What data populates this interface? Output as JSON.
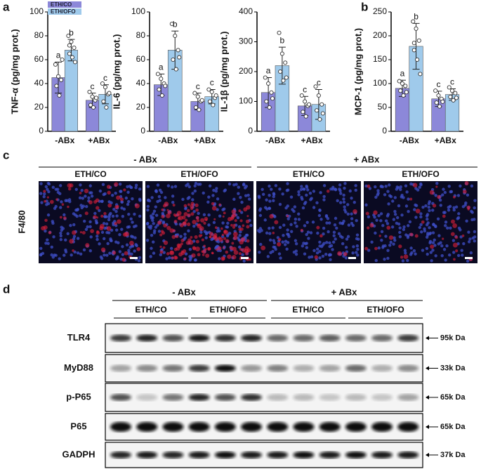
{
  "chart_data": [
    {
      "type": "bar",
      "ylabel": "TNF-α (pg/mg prot.)",
      "categories": [
        "-ABx",
        "+ABx"
      ],
      "ylim": [
        0,
        100
      ],
      "yticks": [
        0,
        20,
        40,
        60,
        80,
        100
      ],
      "legend": true,
      "series": [
        {
          "name": "ETH/CO",
          "color": "#8c88d9",
          "values": [
            45,
            26
          ],
          "errors": [
            13,
            6
          ],
          "letters": [
            "a",
            "c"
          ],
          "points": [
            [
              56,
              46,
              43,
              38,
              30,
              60
            ],
            [
              33,
              29,
              26,
              22,
              20,
              28
            ]
          ]
        },
        {
          "name": "ETH/OFO",
          "color": "#9fcaeb",
          "values": [
            68,
            31
          ],
          "errors": [
            9,
            8
          ],
          "letters": [
            "b",
            "c"
          ],
          "points": [
            [
              80,
              75,
              70,
              65,
              62,
              58,
              72
            ],
            [
              40,
              37,
              31,
              25,
              20,
              32
            ]
          ]
        }
      ]
    },
    {
      "type": "bar",
      "ylabel": "IL-6 (pg/mg prot.)",
      "categories": [
        "-ABx",
        "+ABx"
      ],
      "ylim": [
        0,
        100
      ],
      "yticks": [
        0,
        20,
        40,
        60,
        80,
        100
      ],
      "legend": false,
      "series": [
        {
          "name": "ETH/CO",
          "color": "#8c88d9",
          "values": [
            39,
            25
          ],
          "errors": [
            9,
            7
          ],
          "letters": [
            "a",
            "c"
          ],
          "points": [
            [
              48,
              44,
              40,
              35,
              30,
              38
            ],
            [
              32,
              29,
              25,
              20,
              18,
              26
            ]
          ]
        },
        {
          "name": "ETH/OFO",
          "color": "#9fcaeb",
          "values": [
            68,
            29
          ],
          "errors": [
            16,
            6
          ],
          "letters": [
            "b",
            "c"
          ],
          "points": [
            [
              90,
              80,
              68,
              60,
              52,
              62
            ],
            [
              35,
              33,
              28,
              25,
              22,
              30
            ]
          ]
        }
      ]
    },
    {
      "type": "bar",
      "ylabel": "IL-1β (pg/mg prot.)",
      "categories": [
        "-ABx",
        "+ABx"
      ],
      "ylim": [
        0,
        400
      ],
      "yticks": [
        0,
        100,
        200,
        300,
        400
      ],
      "legend": false,
      "series": [
        {
          "name": "ETH/CO",
          "color": "#8c88d9",
          "values": [
            130,
            85
          ],
          "errors": [
            50,
            32
          ],
          "letters": [
            "a",
            "c"
          ],
          "points": [
            [
              180,
              160,
              130,
              100,
              80,
              110
            ],
            [
              120,
              100,
              85,
              65,
              50,
              90
            ]
          ]
        },
        {
          "name": "ETH/OFO",
          "color": "#9fcaeb",
          "values": [
            220,
            90
          ],
          "errors": [
            62,
            50
          ],
          "letters": [
            "b",
            "c"
          ],
          "points": [
            [
              330,
              260,
              230,
              200,
              170,
              180
            ],
            [
              150,
              120,
              90,
              70,
              40,
              60
            ]
          ]
        }
      ]
    },
    {
      "type": "bar",
      "ylabel": "MCP-1 (pg/mg prot.)",
      "categories": [
        "-ABx",
        "+ABx"
      ],
      "ylim": [
        0,
        250
      ],
      "yticks": [
        0,
        50,
        100,
        150,
        200,
        250
      ],
      "legend": false,
      "series": [
        {
          "name": "ETH/CO",
          "color": "#8c88d9",
          "values": [
            90,
            68
          ],
          "errors": [
            17,
            16
          ],
          "letters": [
            "a",
            "c"
          ],
          "points": [
            [
              105,
              100,
              95,
              85,
              75,
              82
            ],
            [
              85,
              75,
              68,
              60,
              52,
              62
            ]
          ]
        },
        {
          "name": "ETH/OFO",
          "color": "#9fcaeb",
          "values": [
            178,
            77
          ],
          "errors": [
            48,
            12
          ],
          "letters": [
            "b",
            "c"
          ],
          "points": [
            [
              230,
              215,
              190,
              170,
              150,
              120,
              185
            ],
            [
              92,
              85,
              80,
              72,
              65,
              70
            ]
          ]
        }
      ]
    }
  ],
  "panel_labels": [
    "a",
    "b",
    "c",
    "d"
  ],
  "panel_c": {
    "groups": [
      "- ABx",
      "+ ABx"
    ],
    "conditions": [
      "ETH/CO",
      "ETH/OFO",
      "ETH/CO",
      "ETH/OFO"
    ],
    "stain": "F4/80"
  },
  "panel_d": {
    "groups": [
      "- ABx",
      "+ ABx"
    ],
    "conditions": [
      "ETH/CO",
      "ETH/OFO",
      "ETH/CO",
      "ETH/OFO"
    ],
    "rows": [
      {
        "protein": "TLR4",
        "size": "95k Da"
      },
      {
        "protein": "MyD88",
        "size": "33k Da"
      },
      {
        "protein": "p-P65",
        "size": "65k Da"
      },
      {
        "protein": "P65",
        "size": "65k Da"
      },
      {
        "protein": "GADPH",
        "size": "37k Da"
      }
    ]
  }
}
